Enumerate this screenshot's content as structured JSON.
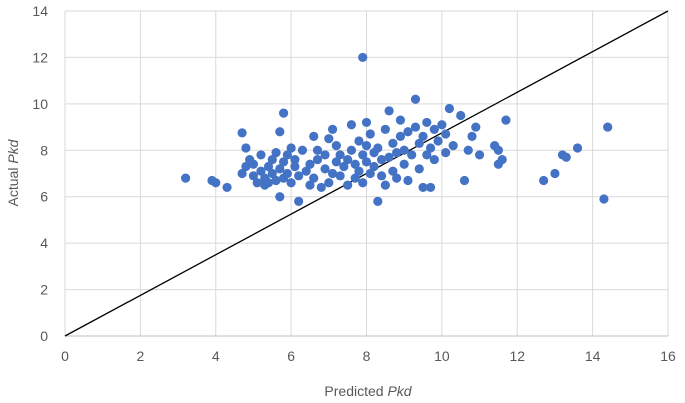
{
  "chart_data": {
    "type": "scatter",
    "title": "",
    "xlabel": "Predicted Pkd",
    "ylabel": "Actual Pkd",
    "xlabel_parts": {
      "plain": "Predicted ",
      "italic": "Pkd"
    },
    "ylabel_parts": {
      "plain": "Actual ",
      "italic": "Pkd"
    },
    "xlim": [
      0,
      16
    ],
    "ylim": [
      0,
      14
    ],
    "x_ticks": [
      0,
      2,
      4,
      6,
      8,
      10,
      12,
      14,
      16
    ],
    "y_ticks": [
      0,
      2,
      4,
      6,
      8,
      10,
      12,
      14
    ],
    "grid": "vertical and horizontal major gridlines",
    "legend": "none",
    "marker_color": "#4472c4",
    "reference_line": {
      "from": [
        0,
        0
      ],
      "to": [
        16,
        14
      ],
      "color": "#000000"
    },
    "series": [
      {
        "points": [
          [
            3.2,
            6.8
          ],
          [
            3.9,
            6.7
          ],
          [
            4.0,
            6.6
          ],
          [
            4.3,
            6.4
          ],
          [
            4.7,
            8.75
          ],
          [
            4.7,
            7.0
          ],
          [
            4.8,
            8.1
          ],
          [
            4.8,
            7.3
          ],
          [
            4.9,
            7.6
          ],
          [
            5.0,
            6.9
          ],
          [
            5.0,
            7.4
          ],
          [
            5.1,
            6.6
          ],
          [
            5.2,
            7.1
          ],
          [
            5.2,
            7.8
          ],
          [
            5.3,
            6.5
          ],
          [
            5.3,
            6.8
          ],
          [
            5.4,
            7.3
          ],
          [
            5.4,
            6.6
          ],
          [
            5.5,
            7.0
          ],
          [
            5.5,
            7.6
          ],
          [
            5.6,
            6.7
          ],
          [
            5.6,
            7.9
          ],
          [
            5.7,
            6.0
          ],
          [
            5.7,
            7.2
          ],
          [
            5.7,
            8.8
          ],
          [
            5.8,
            9.6
          ],
          [
            5.8,
            7.5
          ],
          [
            5.8,
            6.8
          ],
          [
            5.9,
            7.0
          ],
          [
            5.9,
            7.8
          ],
          [
            6.0,
            6.6
          ],
          [
            6.0,
            8.1
          ],
          [
            6.1,
            7.3
          ],
          [
            6.1,
            7.6
          ],
          [
            6.2,
            5.8
          ],
          [
            6.2,
            6.9
          ],
          [
            6.3,
            8.0
          ],
          [
            6.4,
            7.1
          ],
          [
            6.5,
            6.5
          ],
          [
            6.5,
            7.4
          ],
          [
            6.6,
            8.6
          ],
          [
            6.6,
            6.8
          ],
          [
            6.7,
            7.6
          ],
          [
            6.7,
            8.0
          ],
          [
            6.8,
            6.4
          ],
          [
            6.9,
            7.2
          ],
          [
            6.9,
            7.8
          ],
          [
            7.0,
            8.5
          ],
          [
            7.0,
            6.6
          ],
          [
            7.1,
            8.9
          ],
          [
            7.1,
            7.0
          ],
          [
            7.2,
            7.5
          ],
          [
            7.2,
            8.2
          ],
          [
            7.3,
            6.9
          ],
          [
            7.3,
            7.8
          ],
          [
            7.4,
            7.3
          ],
          [
            7.5,
            6.5
          ],
          [
            7.5,
            7.6
          ],
          [
            7.6,
            9.1
          ],
          [
            7.6,
            8.0
          ],
          [
            7.7,
            6.8
          ],
          [
            7.7,
            7.4
          ],
          [
            7.8,
            8.4
          ],
          [
            7.8,
            7.1
          ],
          [
            7.9,
            12.0
          ],
          [
            7.9,
            7.8
          ],
          [
            7.9,
            6.6
          ],
          [
            8.0,
            8.2
          ],
          [
            8.0,
            7.5
          ],
          [
            8.0,
            9.2
          ],
          [
            8.1,
            7.0
          ],
          [
            8.1,
            8.7
          ],
          [
            8.2,
            7.9
          ],
          [
            8.2,
            7.3
          ],
          [
            8.3,
            5.8
          ],
          [
            8.3,
            8.1
          ],
          [
            8.4,
            6.9
          ],
          [
            8.4,
            7.6
          ],
          [
            8.5,
            8.9
          ],
          [
            8.5,
            6.5
          ],
          [
            8.6,
            7.7
          ],
          [
            8.6,
            9.7
          ],
          [
            8.7,
            8.3
          ],
          [
            8.7,
            7.1
          ],
          [
            8.8,
            7.9
          ],
          [
            8.8,
            6.8
          ],
          [
            8.9,
            8.6
          ],
          [
            8.9,
            9.3
          ],
          [
            9.0,
            7.4
          ],
          [
            9.0,
            8.0
          ],
          [
            9.1,
            6.7
          ],
          [
            9.1,
            8.8
          ],
          [
            9.2,
            7.8
          ],
          [
            9.3,
            9.0
          ],
          [
            9.3,
            10.2
          ],
          [
            9.4,
            8.3
          ],
          [
            9.4,
            7.2
          ],
          [
            9.5,
            6.4
          ],
          [
            9.5,
            8.6
          ],
          [
            9.6,
            7.8
          ],
          [
            9.6,
            9.2
          ],
          [
            9.7,
            6.4
          ],
          [
            9.7,
            8.1
          ],
          [
            9.8,
            7.6
          ],
          [
            9.8,
            8.9
          ],
          [
            9.9,
            8.4
          ],
          [
            10.0,
            9.1
          ],
          [
            10.1,
            7.9
          ],
          [
            10.1,
            8.7
          ],
          [
            10.2,
            9.8
          ],
          [
            10.3,
            8.2
          ],
          [
            10.5,
            9.5
          ],
          [
            10.6,
            6.7
          ],
          [
            10.7,
            8.0
          ],
          [
            10.8,
            8.6
          ],
          [
            10.9,
            9.0
          ],
          [
            11.0,
            7.8
          ],
          [
            11.4,
            8.2
          ],
          [
            11.5,
            7.4
          ],
          [
            11.5,
            8.0
          ],
          [
            11.6,
            7.6
          ],
          [
            11.7,
            9.3
          ],
          [
            12.7,
            6.7
          ],
          [
            13.0,
            7.0
          ],
          [
            13.2,
            7.8
          ],
          [
            13.3,
            7.7
          ],
          [
            13.6,
            8.1
          ],
          [
            14.3,
            5.9
          ],
          [
            14.4,
            9.0
          ]
        ]
      }
    ]
  }
}
